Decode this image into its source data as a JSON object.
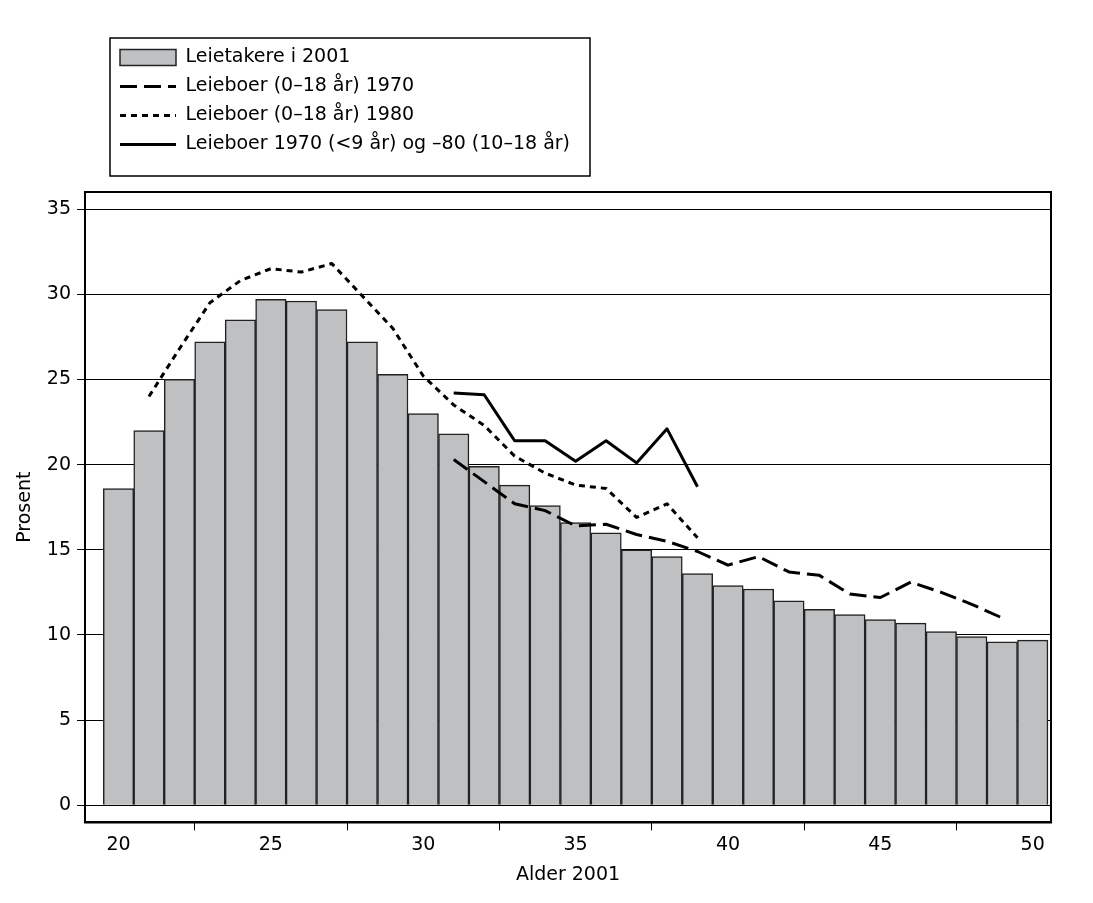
{
  "chart_data": {
    "type": "bar",
    "xlabel": "Alder 2001",
    "ylabel": "Prosent",
    "xlim": [
      18.9,
      50.6
    ],
    "xticks": [
      20,
      25,
      30,
      35,
      40,
      45,
      50
    ],
    "ylim": [
      -1,
      36
    ],
    "yticks": [
      0,
      5,
      10,
      15,
      20,
      25,
      30,
      35
    ],
    "grid": "y",
    "legend": "top left",
    "series": [
      {
        "name": "Leietakere i 2001",
        "color": "#bfc0c2",
        "x": [
          20,
          21,
          22,
          23,
          24,
          25,
          26,
          27,
          28,
          29,
          30,
          31,
          32,
          33,
          34,
          35,
          36,
          37,
          38,
          39,
          40,
          41,
          42,
          43,
          44,
          45,
          46,
          47,
          48,
          49,
          50
        ],
        "values": [
          18.6,
          22.0,
          25.0,
          27.2,
          28.5,
          29.7,
          29.6,
          29.1,
          27.2,
          25.3,
          23.0,
          21.8,
          19.9,
          18.8,
          17.6,
          16.6,
          16.0,
          15.0,
          14.6,
          13.6,
          12.9,
          12.7,
          12.0,
          11.5,
          11.2,
          10.9,
          10.7,
          10.2,
          9.9,
          9.6,
          9.7
        ]
      },
      {
        "name": "Leieboer (0–18 år) 1970",
        "type": "line",
        "line_style": "dashed",
        "color": "#000000",
        "x": [
          31,
          32,
          33,
          34,
          35,
          36,
          37,
          38,
          39,
          40,
          41,
          42,
          43,
          44,
          45,
          46,
          47,
          48,
          49
        ],
        "values": [
          20.3,
          19.0,
          17.7,
          17.3,
          16.4,
          16.5,
          15.9,
          15.5,
          14.9,
          14.1,
          14.6,
          13.7,
          13.5,
          12.4,
          12.2,
          13.1,
          12.5,
          11.8,
          11.0
        ]
      },
      {
        "name": "Leieboer (0–18 år) 1980",
        "type": "line",
        "line_style": "dotted",
        "color": "#000000",
        "x": [
          21,
          22,
          23,
          24,
          25,
          26,
          27,
          28,
          29,
          30,
          31,
          32,
          33,
          34,
          35,
          36,
          37,
          38,
          39
        ],
        "values": [
          24.0,
          26.8,
          29.5,
          30.8,
          31.5,
          31.3,
          31.8,
          29.9,
          28.0,
          25.2,
          23.5,
          22.3,
          20.5,
          19.5,
          18.8,
          18.6,
          16.9,
          17.7,
          15.7
        ]
      },
      {
        "name": "Leieboer 1970 (<9 år) og –80 (10–18 år)",
        "type": "line",
        "line_style": "solid",
        "color": "#000000",
        "x": [
          31,
          32,
          33,
          34,
          35,
          36,
          37,
          38,
          39
        ],
        "values": [
          24.2,
          24.1,
          21.4,
          21.4,
          20.2,
          21.4,
          20.1,
          22.1,
          18.7
        ]
      }
    ]
  }
}
